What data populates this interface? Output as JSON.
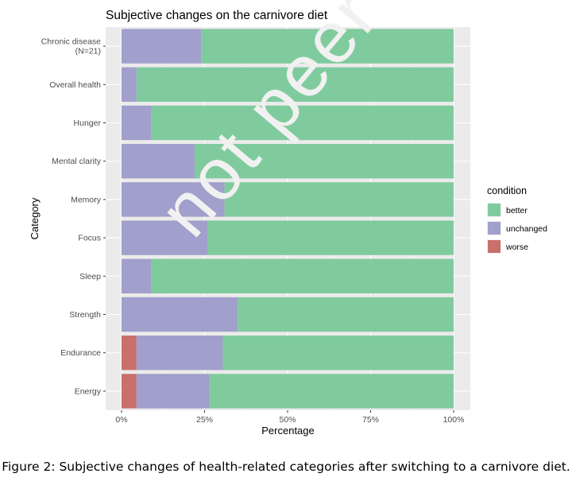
{
  "watermark_text": "not peer reviewed",
  "caption": "Figure 2: Subjective changes of health-related categories after switching to a carnivore diet.",
  "chart_data": {
    "type": "bar",
    "orientation": "horizontal",
    "stacked": true,
    "title": "Subjective changes on the carnivore diet",
    "xlabel": "Percentage",
    "ylabel": "Category",
    "xlim": [
      0,
      100
    ],
    "xticks": [
      0,
      25,
      50,
      75,
      100
    ],
    "xtick_labels": [
      "0%",
      "25%",
      "50%",
      "75%",
      "100%"
    ],
    "grid": true,
    "legend_title": "condition",
    "legend_position": "right",
    "categories": [
      [
        "Chronic disease",
        "(N=21)"
      ],
      [
        "Overall health"
      ],
      [
        "Hunger"
      ],
      [
        "Mental clarity"
      ],
      [
        "Memory"
      ],
      [
        "Focus"
      ],
      [
        "Sleep"
      ],
      [
        "Strength"
      ],
      [
        "Endurance"
      ],
      [
        "Energy"
      ]
    ],
    "series": [
      {
        "name": "worse",
        "color": "#c9706b",
        "values": [
          0,
          0,
          0,
          0,
          0,
          0,
          0,
          0,
          4.5,
          4.5
        ]
      },
      {
        "name": "unchanged",
        "color": "#a19fcb",
        "values": [
          24,
          4.5,
          9,
          22,
          31,
          26,
          9,
          35,
          26,
          22
        ]
      },
      {
        "name": "better",
        "color": "#80cb9e",
        "values": [
          76,
          95.5,
          91,
          78,
          69,
          74,
          91,
          65,
          69.5,
          73.5
        ]
      }
    ],
    "legend_order": [
      "better",
      "unchanged",
      "worse"
    ]
  }
}
